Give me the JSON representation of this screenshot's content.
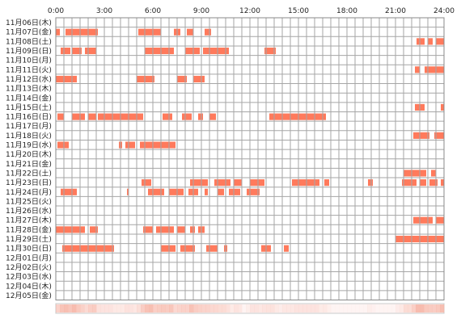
{
  "chart_data": {
    "type": "heatmap",
    "x_ticks": [
      "0:00",
      "3:00",
      "6:00",
      "9:00",
      "12:00",
      "15:00",
      "18:00",
      "21:00",
      "24:00"
    ],
    "xlim_hours": [
      0,
      24
    ],
    "rows": [
      {
        "label": "11月06日(木)",
        "intervals": []
      },
      {
        "label": "11月07日(金)",
        "intervals": [
          [
            0.0,
            0.25
          ],
          [
            0.6,
            2.6
          ],
          [
            5.1,
            6.5
          ],
          [
            7.3,
            7.7
          ],
          [
            8.1,
            8.5
          ],
          [
            9.2,
            9.6
          ]
        ]
      },
      {
        "label": "11月08日(土)",
        "intervals": [
          [
            22.3,
            22.8
          ],
          [
            23.0,
            23.3
          ],
          [
            23.5,
            24.0
          ]
        ]
      },
      {
        "label": "11月09日(日)",
        "intervals": [
          [
            0.3,
            0.9
          ],
          [
            1.0,
            1.6
          ],
          [
            1.8,
            2.5
          ],
          [
            5.5,
            7.3
          ],
          [
            8.0,
            8.9
          ],
          [
            9.1,
            10.7
          ],
          [
            12.9,
            13.6
          ]
        ]
      },
      {
        "label": "11月10日(月)",
        "intervals": []
      },
      {
        "label": "11月11日(火)",
        "intervals": [
          [
            22.2,
            22.5
          ],
          [
            22.8,
            24.0
          ]
        ]
      },
      {
        "label": "11月12日(水)",
        "intervals": [
          [
            0.0,
            1.3
          ],
          [
            5.0,
            6.1
          ],
          [
            7.5,
            8.1
          ],
          [
            8.5,
            9.2
          ]
        ]
      },
      {
        "label": "11月13日(木)",
        "intervals": []
      },
      {
        "label": "11月14日(金)",
        "intervals": []
      },
      {
        "label": "11月15日(土)",
        "intervals": [
          [
            22.2,
            22.8
          ],
          [
            23.8,
            24.0
          ]
        ]
      },
      {
        "label": "11月16日(日)",
        "intervals": [
          [
            0.1,
            0.5
          ],
          [
            1.0,
            1.8
          ],
          [
            2.0,
            2.5
          ],
          [
            2.6,
            5.4
          ],
          [
            6.6,
            7.2
          ],
          [
            7.8,
            8.4
          ],
          [
            8.8,
            9.1
          ],
          [
            9.5,
            9.9
          ],
          [
            13.2,
            16.7
          ]
        ]
      },
      {
        "label": "11月17日(月)",
        "intervals": []
      },
      {
        "label": "11月18日(火)",
        "intervals": [
          [
            22.1,
            23.1
          ],
          [
            23.4,
            24.0
          ]
        ]
      },
      {
        "label": "11月19日(水)",
        "intervals": [
          [
            0.1,
            0.8
          ],
          [
            3.9,
            4.1
          ],
          [
            4.3,
            4.9
          ],
          [
            5.2,
            7.4
          ]
        ]
      },
      {
        "label": "11月20日(木)",
        "intervals": []
      },
      {
        "label": "11月21日(金)",
        "intervals": []
      },
      {
        "label": "11月22日(土)",
        "intervals": [
          [
            21.5,
            22.9
          ],
          [
            23.2,
            23.5
          ]
        ]
      },
      {
        "label": "11月23日(日)",
        "intervals": [
          [
            5.3,
            5.9
          ],
          [
            8.3,
            9.4
          ],
          [
            9.8,
            10.8
          ],
          [
            11.0,
            11.5
          ],
          [
            12.0,
            12.9
          ],
          [
            14.6,
            16.3
          ],
          [
            16.6,
            16.9
          ],
          [
            19.3,
            19.6
          ],
          [
            21.4,
            22.3
          ],
          [
            22.5,
            22.9
          ],
          [
            23.1,
            23.6
          ],
          [
            23.8,
            24.0
          ]
        ]
      },
      {
        "label": "11月24日(月)",
        "intervals": [
          [
            0.3,
            1.3
          ],
          [
            4.4,
            4.5
          ],
          [
            5.7,
            6.7
          ],
          [
            7.0,
            7.9
          ],
          [
            8.2,
            8.8
          ],
          [
            9.2,
            9.4
          ],
          [
            10.0,
            10.4
          ],
          [
            10.7,
            11.4
          ],
          [
            11.8,
            12.6
          ]
        ]
      },
      {
        "label": "11月25日(火)",
        "intervals": []
      },
      {
        "label": "11月26日(水)",
        "intervals": []
      },
      {
        "label": "11月27日(木)",
        "intervals": [
          [
            22.1,
            23.3
          ],
          [
            23.5,
            24.0
          ]
        ]
      },
      {
        "label": "11月28日(金)",
        "intervals": [
          [
            0.0,
            1.8
          ],
          [
            2.1,
            2.6
          ],
          [
            5.4,
            6.0
          ],
          [
            6.2,
            7.3
          ],
          [
            7.5,
            8.0
          ],
          [
            8.3,
            8.6
          ],
          [
            8.8,
            9.2
          ]
        ]
      },
      {
        "label": "11月29日(土)",
        "intervals": [
          [
            21.0,
            24.0
          ]
        ]
      },
      {
        "label": "11月30日(日)",
        "intervals": [
          [
            0.4,
            3.6
          ],
          [
            6.5,
            7.4
          ],
          [
            7.7,
            8.6
          ],
          [
            9.3,
            10.0
          ],
          [
            10.4,
            10.6
          ],
          [
            12.7,
            13.3
          ],
          [
            14.1,
            14.4
          ]
        ]
      },
      {
        "label": "12月01日(月)",
        "intervals": []
      },
      {
        "label": "12月02日(火)",
        "intervals": []
      },
      {
        "label": "12月03日(水)",
        "intervals": []
      },
      {
        "label": "12月04日(木)",
        "intervals": []
      },
      {
        "label": "12月05日(金)",
        "intervals": []
      }
    ],
    "bar_color": "#ff7a5c",
    "summary_strip_color": "#f6b3a4",
    "grid": true
  }
}
